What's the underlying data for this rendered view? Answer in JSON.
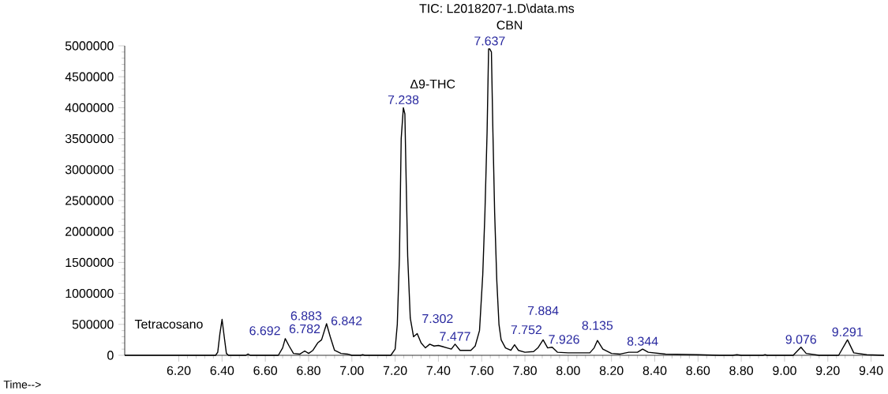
{
  "chart_data": {
    "type": "line",
    "title": "TIC: L2018207-1.D\\data.ms",
    "xlabel": "Time-->",
    "xlim": [
      5.95,
      9.46
    ],
    "ylim": [
      0,
      5000000
    ],
    "xticks": [
      {
        "value": 6.2,
        "label": "6.20"
      },
      {
        "value": 6.4,
        "label": "6.40"
      },
      {
        "value": 6.6,
        "label": "6.60"
      },
      {
        "value": 6.8,
        "label": "6.80"
      },
      {
        "value": 7.0,
        "label": "7.00"
      },
      {
        "value": 7.2,
        "label": "7.20"
      },
      {
        "value": 7.4,
        "label": "7.40"
      },
      {
        "value": 7.6,
        "label": "7.60"
      },
      {
        "value": 7.8,
        "label": "7.80"
      },
      {
        "value": 8.0,
        "label": "8.00"
      },
      {
        "value": 8.2,
        "label": "8.20"
      },
      {
        "value": 8.4,
        "label": "8.40"
      },
      {
        "value": 8.6,
        "label": "8.60"
      },
      {
        "value": 8.8,
        "label": "8.80"
      },
      {
        "value": 9.0,
        "label": "9.00"
      },
      {
        "value": 9.2,
        "label": "9.20"
      },
      {
        "value": 9.4,
        "label": "9.40"
      }
    ],
    "yticks": [
      0,
      500000,
      1000000,
      1500000,
      2000000,
      2500000,
      3000000,
      3500000,
      4000000,
      4500000,
      5000000
    ],
    "series": [
      {
        "color": "#000000",
        "x": [
          5.95,
          6.37,
          6.38,
          6.39,
          6.4,
          6.41,
          6.42,
          6.43,
          6.51,
          6.52,
          6.53,
          6.66,
          6.68,
          6.692,
          6.71,
          6.73,
          6.76,
          6.782,
          6.8,
          6.82,
          6.842,
          6.86,
          6.883,
          6.9,
          6.92,
          6.95,
          6.98,
          7.0,
          7.04,
          7.05,
          7.06,
          7.18,
          7.2,
          7.21,
          7.22,
          7.228,
          7.238,
          7.245,
          7.25,
          7.258,
          7.27,
          7.285,
          7.302,
          7.32,
          7.34,
          7.36,
          7.38,
          7.4,
          7.42,
          7.44,
          7.46,
          7.477,
          7.5,
          7.55,
          7.57,
          7.59,
          7.605,
          7.615,
          7.625,
          7.632,
          7.637,
          7.645,
          7.652,
          7.66,
          7.67,
          7.68,
          7.69,
          7.71,
          7.735,
          7.752,
          7.77,
          7.8,
          7.84,
          7.86,
          7.884,
          7.905,
          7.926,
          7.95,
          8.0,
          8.1,
          8.12,
          8.135,
          8.16,
          8.2,
          8.24,
          8.28,
          8.32,
          8.344,
          8.37,
          8.45,
          8.6,
          8.7,
          8.76,
          8.78,
          8.8,
          8.9,
          8.91,
          8.92,
          9.04,
          9.076,
          9.1,
          9.16,
          9.25,
          9.291,
          9.32,
          9.38,
          9.46
        ],
        "values": [
          0,
          0,
          50000,
          350000,
          580000,
          300000,
          30000,
          0,
          0,
          20000,
          0,
          0,
          120000,
          270000,
          150000,
          30000,
          20000,
          70000,
          30000,
          80000,
          200000,
          250000,
          510000,
          300000,
          80000,
          30000,
          20000,
          0,
          0,
          10000,
          0,
          0,
          100000,
          500000,
          1600000,
          3500000,
          4000000,
          3900000,
          3000000,
          1600000,
          600000,
          300000,
          350000,
          200000,
          120000,
          180000,
          150000,
          160000,
          140000,
          120000,
          100000,
          180000,
          80000,
          80000,
          150000,
          400000,
          1300000,
          2300000,
          3600000,
          4950000,
          4950000,
          4900000,
          3600000,
          2300000,
          1200000,
          500000,
          250000,
          120000,
          80000,
          170000,
          80000,
          50000,
          60000,
          120000,
          250000,
          120000,
          130000,
          50000,
          40000,
          40000,
          120000,
          240000,
          100000,
          30000,
          20000,
          50000,
          50000,
          100000,
          50000,
          20000,
          10000,
          0,
          0,
          10000,
          0,
          0,
          10000,
          0,
          0,
          130000,
          30000,
          0,
          0,
          250000,
          40000,
          10000,
          0
        ]
      }
    ],
    "annotations": [
      {
        "text": "Tetracosano",
        "x": 6.4,
        "y": 580000
      },
      {
        "text": "Δ9-THC",
        "x": 7.238,
        "y": 4000000
      },
      {
        "text": "CBN",
        "x": 7.637,
        "y": 4950000
      },
      {
        "text": "6.692",
        "x": 6.692,
        "y": 270000
      },
      {
        "text": "6.782",
        "x": 6.782,
        "y": 70000
      },
      {
        "text": "6.842",
        "x": 6.842,
        "y": 200000
      },
      {
        "text": "6.883",
        "x": 6.883,
        "y": 510000
      },
      {
        "text": "7.238",
        "x": 7.238,
        "y": 4000000
      },
      {
        "text": "7.302",
        "x": 7.302,
        "y": 350000
      },
      {
        "text": "7.477",
        "x": 7.477,
        "y": 180000
      },
      {
        "text": "7.637",
        "x": 7.637,
        "y": 4950000
      },
      {
        "text": "7.752",
        "x": 7.752,
        "y": 170000
      },
      {
        "text": "7.884",
        "x": 7.884,
        "y": 250000
      },
      {
        "text": "7.926",
        "x": 7.926,
        "y": 130000
      },
      {
        "text": "8.135",
        "x": 8.135,
        "y": 240000
      },
      {
        "text": "8.344",
        "x": 8.344,
        "y": 100000
      },
      {
        "text": "9.076",
        "x": 9.076,
        "y": 130000
      },
      {
        "text": "9.291",
        "x": 9.291,
        "y": 250000
      }
    ]
  }
}
